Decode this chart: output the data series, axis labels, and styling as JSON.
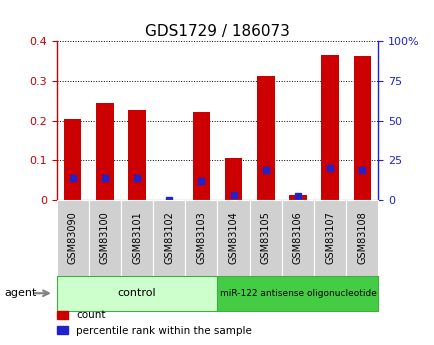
{
  "title": "GDS1729 / 186073",
  "samples": [
    "GSM83090",
    "GSM83100",
    "GSM83101",
    "GSM83102",
    "GSM83103",
    "GSM83104",
    "GSM83105",
    "GSM83106",
    "GSM83107",
    "GSM83108"
  ],
  "red_values": [
    0.205,
    0.245,
    0.228,
    0.0,
    0.222,
    0.105,
    0.314,
    0.013,
    0.365,
    0.362
  ],
  "blue_values": [
    0.055,
    0.055,
    0.055,
    0.0,
    0.048,
    0.012,
    0.077,
    0.01,
    0.082,
    0.077
  ],
  "ylim_left": [
    0,
    0.4
  ],
  "ylim_right": [
    0,
    100
  ],
  "yticks_left": [
    0,
    0.1,
    0.2,
    0.3,
    0.4
  ],
  "yticks_right": [
    0,
    25,
    50,
    75,
    100
  ],
  "ytick_labels_right": [
    "0",
    "25",
    "50",
    "75",
    "100%"
  ],
  "control_samples": 5,
  "bar_width": 0.55,
  "red_color": "#cc0000",
  "blue_color": "#2222cc",
  "control_color_light": "#ccffcc",
  "control_color_dark": "#44cc44",
  "control_label": "control",
  "treatment_label": "miR-122 antisense oligonucleotide",
  "agent_label": "agent",
  "legend_count": "count",
  "legend_pct": "percentile rank within the sample",
  "gray_box_color": "#d0d0d0",
  "title_color": "#000000",
  "title_fontsize": 11,
  "axis_label_fontsize": 8,
  "tick_fontsize": 8,
  "bar_label_fontsize": 7
}
